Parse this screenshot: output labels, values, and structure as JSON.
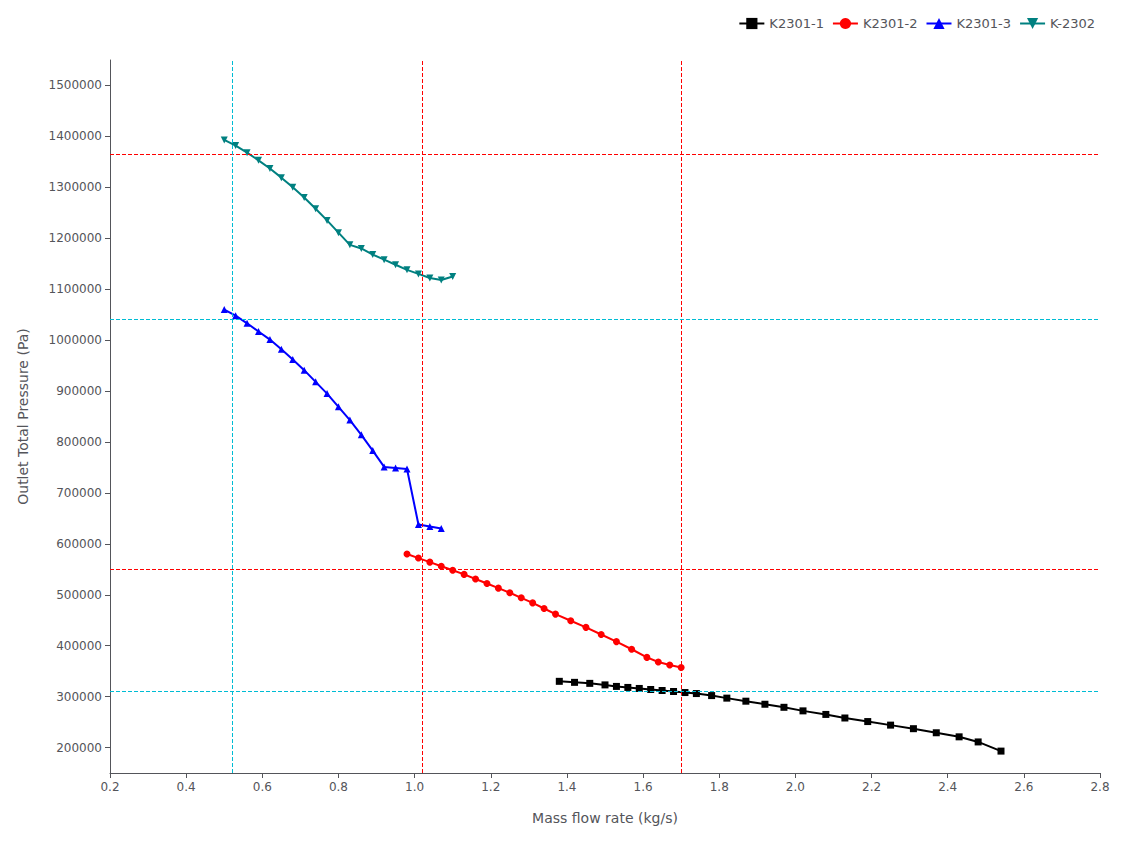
{
  "chart_data": {
    "type": "line",
    "xlabel": "Mass flow rate (kg/s)",
    "ylabel": "Outlet Total Pressure (Pa)",
    "xlim": [
      0.2,
      2.8
    ],
    "ylim": [
      150000,
      1550000
    ],
    "xticks": [
      0.2,
      0.4,
      0.6,
      0.8,
      {
        "value": 1.0,
        "label": "1.0"
      },
      1.2,
      1.4,
      1.6,
      1.8,
      {
        "value": 2.0,
        "label": "2.0"
      },
      2.2,
      2.4,
      2.6,
      2.8
    ],
    "yticks": [
      200000,
      300000,
      400000,
      500000,
      600000,
      700000,
      800000,
      900000,
      1000000,
      1100000,
      1200000,
      1300000,
      1400000,
      1500000
    ],
    "grid": false,
    "legend": "upper right",
    "reference_lines": [
      {
        "axis": "x",
        "value": 0.52,
        "color": "#ff0000",
        "line_style": "dashed"
      },
      {
        "axis": "x",
        "value": 1.02,
        "color": "#ff0000",
        "line_style": "dashed"
      },
      {
        "axis": "x",
        "value": 1.7,
        "color": "#ff0000",
        "line_style": "dashed"
      },
      {
        "axis": "y",
        "value": 310000,
        "color": "#ff0000",
        "line_style": "dashed"
      },
      {
        "axis": "y",
        "value": 550000,
        "color": "#ff0000",
        "line_style": "dashed"
      },
      {
        "axis": "y",
        "value": 1040000,
        "color": "#ff0000",
        "line_style": "dashed"
      },
      {
        "axis": "y",
        "value": 1365000,
        "color": "#ff0000",
        "line_style": "dashed"
      },
      {
        "axis": "x",
        "value": 0.52,
        "color": "#00bcd4",
        "line_style": "dashed"
      },
      {
        "axis": "y",
        "value": 310000,
        "color": "#00bcd4",
        "line_style": "dashed"
      },
      {
        "axis": "y",
        "value": 1040000,
        "color": "#00bcd4",
        "line_style": "dashed"
      }
    ],
    "series": [
      {
        "name": "K2301-1",
        "color": "#000000",
        "marker": "square",
        "x": [
          1.38,
          1.42,
          1.46,
          1.5,
          1.53,
          1.56,
          1.59,
          1.62,
          1.65,
          1.68,
          1.71,
          1.74,
          1.78,
          1.82,
          1.87,
          1.92,
          1.97,
          2.02,
          2.08,
          2.13,
          2.19,
          2.25,
          2.31,
          2.37,
          2.43,
          2.48,
          2.54
        ],
        "values": [
          330000,
          328000,
          326000,
          323000,
          320000,
          318000,
          316000,
          314000,
          312000,
          310000,
          308000,
          306000,
          302000,
          297000,
          291000,
          285000,
          279000,
          272000,
          265000,
          258000,
          251000,
          244000,
          237000,
          229000,
          221000,
          211000,
          193000
        ]
      },
      {
        "name": "K2301-2",
        "color": "#ff0000",
        "marker": "circle",
        "x": [
          0.98,
          1.01,
          1.04,
          1.07,
          1.1,
          1.13,
          1.16,
          1.19,
          1.22,
          1.25,
          1.28,
          1.31,
          1.34,
          1.37,
          1.41,
          1.45,
          1.49,
          1.53,
          1.57,
          1.61,
          1.64,
          1.67,
          1.7
        ],
        "values": [
          580000,
          572000,
          564000,
          556000,
          548000,
          540000,
          531000,
          522000,
          513000,
          504000,
          494000,
          484000,
          473000,
          462000,
          449000,
          436000,
          422000,
          408000,
          393000,
          377000,
          368000,
          362000,
          357000
        ]
      },
      {
        "name": "K2301-3",
        "color": "#0000ff",
        "marker": "triangle-up",
        "x": [
          0.5,
          0.53,
          0.56,
          0.59,
          0.62,
          0.65,
          0.68,
          0.71,
          0.74,
          0.77,
          0.8,
          0.83,
          0.86,
          0.89,
          0.92,
          0.95,
          0.98,
          1.01,
          1.04,
          1.07
        ],
        "values": [
          1060000,
          1048000,
          1033000,
          1017000,
          1001000,
          982000,
          962000,
          941000,
          918000,
          895000,
          869000,
          843000,
          814000,
          783000,
          751000,
          749000,
          747000,
          638000,
          634000,
          630000
        ]
      },
      {
        "name": "K-2302",
        "color": "#008080",
        "marker": "triangle-down",
        "x": [
          0.5,
          0.53,
          0.56,
          0.59,
          0.62,
          0.65,
          0.68,
          0.71,
          0.74,
          0.77,
          0.8,
          0.83,
          0.86,
          0.89,
          0.92,
          0.95,
          0.98,
          1.01,
          1.04,
          1.07,
          1.1
        ],
        "values": [
          1393000,
          1382000,
          1368000,
          1353000,
          1337000,
          1319000,
          1300000,
          1280000,
          1258000,
          1235000,
          1211000,
          1187000,
          1180000,
          1168000,
          1158000,
          1148000,
          1138000,
          1130000,
          1122000,
          1118000,
          1125000
        ]
      }
    ]
  }
}
